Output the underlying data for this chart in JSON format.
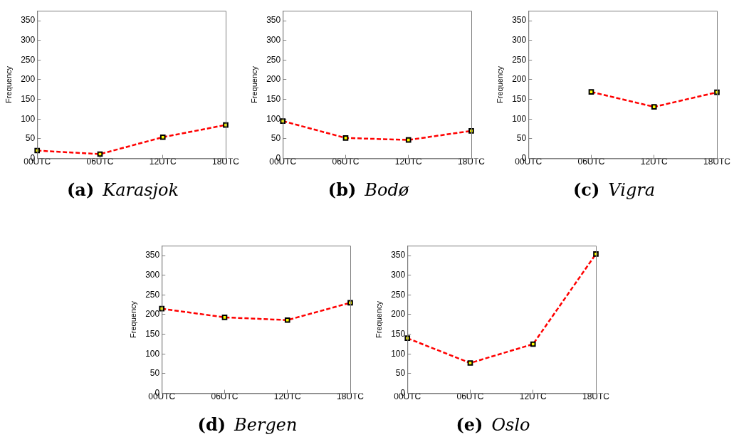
{
  "chart_data": [
    {
      "type": "line",
      "title": "(a) Karasjok",
      "ylabel": "Frequency",
      "categories": [
        "00UTC",
        "06UTC",
        "12UTC",
        "18UTC"
      ],
      "series": [
        {
          "color": "#ff0000",
          "values": [
            20,
            11,
            54,
            85
          ]
        }
      ],
      "ylim": [
        0,
        375
      ],
      "yticks": [
        0,
        50,
        100,
        150,
        200,
        250,
        300,
        350
      ],
      "grid": false,
      "legend": false,
      "marker": "square",
      "line_style": "dashed"
    },
    {
      "type": "line",
      "title": "(b) Bodø",
      "ylabel": "Frequency",
      "categories": [
        "00UTC",
        "06UTC",
        "12UTC",
        "18UTC"
      ],
      "series": [
        {
          "color": "#ff0000",
          "values": [
            95,
            52,
            47,
            70
          ]
        }
      ],
      "ylim": [
        0,
        375
      ],
      "yticks": [
        0,
        50,
        100,
        150,
        200,
        250,
        300,
        350
      ],
      "grid": false,
      "legend": false,
      "marker": "square",
      "line_style": "dashed"
    },
    {
      "type": "line",
      "title": "(c) Vigra",
      "ylabel": "Frequency",
      "categories": [
        "00UTC",
        "06UTC",
        "12UTC",
        "18UTC"
      ],
      "series": [
        {
          "color": "#ff0000",
          "values": [
            null,
            169,
            131,
            168
          ]
        }
      ],
      "ylim": [
        0,
        375
      ],
      "yticks": [
        0,
        50,
        100,
        150,
        200,
        250,
        300,
        350
      ],
      "grid": false,
      "legend": false,
      "marker": "square",
      "line_style": "dashed"
    },
    {
      "type": "line",
      "title": "(d) Bergen",
      "ylabel": "Frequency",
      "categories": [
        "00UTC",
        "06UTC",
        "12UTC",
        "18UTC"
      ],
      "series": [
        {
          "color": "#ff0000",
          "values": [
            215,
            193,
            186,
            230
          ]
        }
      ],
      "ylim": [
        0,
        375
      ],
      "yticks": [
        0,
        50,
        100,
        150,
        200,
        250,
        300,
        350
      ],
      "grid": false,
      "legend": false,
      "marker": "square",
      "line_style": "dashed"
    },
    {
      "type": "line",
      "title": "(e) Oslo",
      "ylabel": "Frequency",
      "categories": [
        "00UTC",
        "06UTC",
        "12UTC",
        "18UTC"
      ],
      "series": [
        {
          "color": "#ff0000",
          "values": [
            140,
            77,
            125,
            354
          ]
        }
      ],
      "ylim": [
        0,
        375
      ],
      "yticks": [
        0,
        50,
        100,
        150,
        200,
        250,
        300,
        350
      ],
      "grid": false,
      "legend": false,
      "marker": "square",
      "line_style": "dashed"
    }
  ]
}
